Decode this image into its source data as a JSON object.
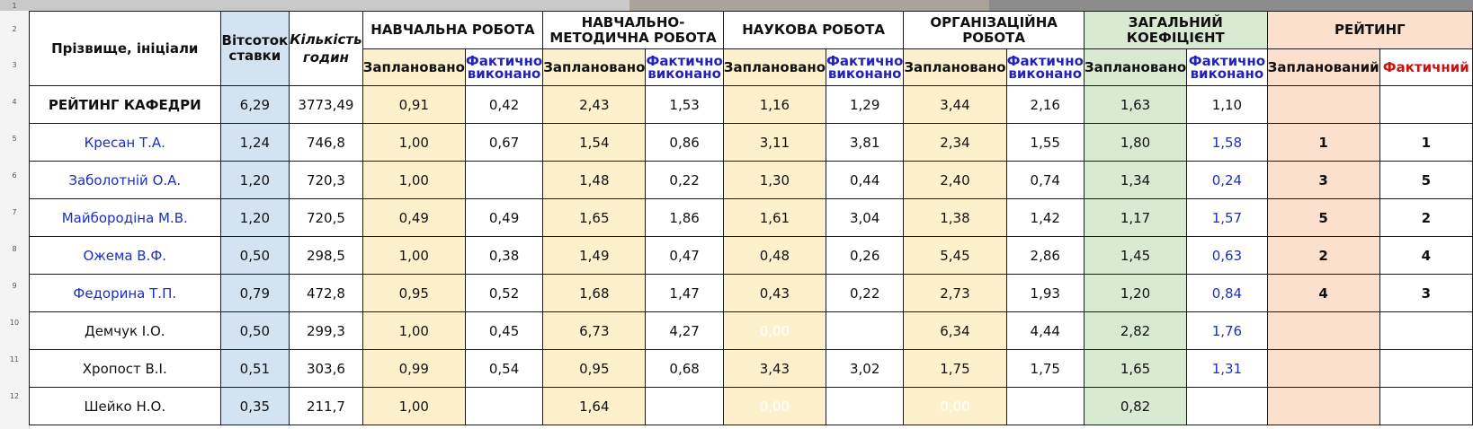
{
  "header": {
    "name_col": "Прізвище, ініціали",
    "rate_col": "Вітсоток ставки",
    "hours_col": "Кількість годин",
    "sections": {
      "teaching": "НАВЧАЛЬНА РОБОТА",
      "methodical": "НАВЧАЛЬНО-МЕТОДИЧНА РОБОТА",
      "scientific": "НАУКОВА РОБОТА",
      "organizational": "ОРГАНІЗАЦІЙНА РОБОТА",
      "general": "ЗАГАЛЬНИЙ КОЕФІЦІЄНТ",
      "rating": "РЕЙТИНГ"
    },
    "planned": "Заплановано",
    "actual": "Фактично виконано",
    "rating_planned": "Запланований",
    "rating_actual": "Фактичний"
  },
  "row_numbers": [
    "1",
    "2",
    "3",
    "4",
    "5",
    "6",
    "7",
    "8",
    "9",
    "10",
    "11",
    "12"
  ],
  "summary": {
    "name": "РЕЙТИНГ КАФЕДРИ",
    "rate": "6,29",
    "hours": "3773,49",
    "t_plan": "0,91",
    "t_fact": "0,42",
    "m_plan": "2,43",
    "m_fact": "1,53",
    "s_plan": "1,16",
    "s_fact": "1,29",
    "o_plan": "3,44",
    "o_fact": "2,16",
    "g_plan": "1,63",
    "g_fact": "1,10"
  },
  "rows": [
    {
      "name": "Кресан Т.А.",
      "rate": "1,24",
      "hours": "746,8",
      "t_plan": "1,00",
      "t_fact": "0,67",
      "m_plan": "1,54",
      "m_fact": "0,86",
      "s_plan": "3,11",
      "s_fact": "3,81",
      "o_plan": "2,34",
      "o_fact": "1,55",
      "g_plan": "1,80",
      "g_fact": "1,58",
      "r_plan": "1",
      "r_fact": "1"
    },
    {
      "name": "Заболотній О.А.",
      "rate": "1,20",
      "hours": "720,3",
      "t_plan": "1,00",
      "t_fact": "",
      "m_plan": "1,48",
      "m_fact": "0,22",
      "s_plan": "1,30",
      "s_fact": "0,44",
      "o_plan": "2,40",
      "o_fact": "0,74",
      "g_plan": "1,34",
      "g_fact": "0,24",
      "r_plan": "3",
      "r_fact": "5"
    },
    {
      "name": "Майбородіна М.В.",
      "rate": "1,20",
      "hours": "720,5",
      "t_plan": "0,49",
      "t_fact": "0,49",
      "m_plan": "1,65",
      "m_fact": "1,86",
      "s_plan": "1,61",
      "s_fact": "3,04",
      "o_plan": "1,38",
      "o_fact": "1,42",
      "g_plan": "1,17",
      "g_fact": "1,57",
      "r_plan": "5",
      "r_fact": "2"
    },
    {
      "name": "Ожема В.Ф.",
      "rate": "0,50",
      "hours": "298,5",
      "t_plan": "1,00",
      "t_fact": "0,38",
      "m_plan": "1,49",
      "m_fact": "0,47",
      "s_plan": "0,48",
      "s_fact": "0,26",
      "o_plan": "5,45",
      "o_fact": "2,86",
      "g_plan": "1,45",
      "g_fact": "0,63",
      "r_plan": "2",
      "r_fact": "4"
    },
    {
      "name": "Федорина Т.П.",
      "rate": "0,79",
      "hours": "472,8",
      "t_plan": "0,95",
      "t_fact": "0,52",
      "m_plan": "1,68",
      "m_fact": "1,47",
      "s_plan": "0,43",
      "s_fact": "0,22",
      "o_plan": "2,73",
      "o_fact": "1,93",
      "g_plan": "1,20",
      "g_fact": "0,84",
      "r_plan": "4",
      "r_fact": "3"
    },
    {
      "name": "Демчук І.О.",
      "rate": "0,50",
      "hours": "299,3",
      "t_plan": "1,00",
      "t_fact": "0,45",
      "m_plan": "6,73",
      "m_fact": "4,27",
      "s_plan": "0,00",
      "s_fact": "",
      "o_plan": "6,34",
      "o_fact": "4,44",
      "g_plan": "2,82",
      "g_fact": "1,76",
      "r_plan": "",
      "r_fact": ""
    },
    {
      "name": "Хропост В.І.",
      "rate": "0,51",
      "hours": "303,6",
      "t_plan": "0,99",
      "t_fact": "0,54",
      "m_plan": "0,95",
      "m_fact": "0,68",
      "s_plan": "3,43",
      "s_fact": "3,02",
      "o_plan": "1,75",
      "o_fact": "1,75",
      "g_plan": "1,65",
      "g_fact": "1,31",
      "r_plan": "",
      "r_fact": ""
    },
    {
      "name": "Шейко Н.О.",
      "rate": "0,35",
      "hours": "211,7",
      "t_plan": "1,00",
      "t_fact": "",
      "m_plan": "1,64",
      "m_fact": "",
      "s_plan": "0,00",
      "s_fact": "",
      "o_plan": "0,00",
      "o_fact": "",
      "g_plan": "0,82",
      "g_fact": "",
      "r_plan": "",
      "r_fact": ""
    }
  ],
  "colors": {
    "rate_fill": "#d3e3f1",
    "section_fill": "#fdf0cd",
    "general_fill": "#d9ead3",
    "rating_fill": "#fbe0cd",
    "accent_red": "#cc1111",
    "accent_blue": "#1c2fc4"
  }
}
